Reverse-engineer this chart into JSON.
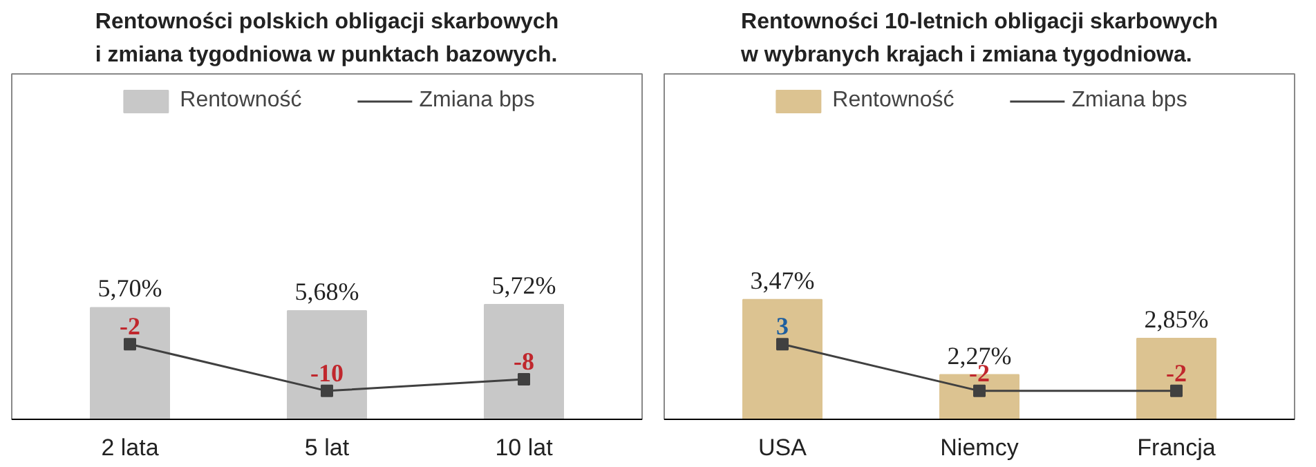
{
  "chart_data": [
    {
      "type": "bar",
      "title": "Rentowności polskich obligacji skarbowych\ni zmiana tygodniowa w punktach bazowych.",
      "categories": [
        "2 lata",
        "5 lat",
        "10 lat"
      ],
      "ylim": [
        4.97,
        7.23
      ],
      "y2lim": [
        -14.87,
        44.3
      ],
      "tick_labels": "x",
      "data_labels": true,
      "legend": "top",
      "grid": false,
      "series": [
        {
          "name": "Rentowność",
          "color": "#c8c8c8",
          "values": [
            5.7,
            5.68,
            5.72
          ],
          "value_labels": [
            "5,70%",
            "5,68%",
            "5,72%"
          ]
        },
        {
          "name": "Zmiana bps",
          "type": "line",
          "axis": "y2",
          "color": "#404040",
          "marker": "square",
          "values": [
            -2,
            -10,
            -8
          ]
        }
      ]
    },
    {
      "type": "bar",
      "title": "Rentowności 10-letnich obligacji skarbowych\nw wybranych krajach i zmiana tygodniowa.",
      "categories": [
        "USA",
        "Niemcy",
        "Francja"
      ],
      "ylim": [
        1.56,
        7.07
      ],
      "y2lim": [
        -5.04,
        31.9
      ],
      "tick_labels": "x",
      "data_labels": true,
      "legend": "top",
      "grid": false,
      "series": [
        {
          "name": "Rentowność",
          "color": "#dcc391",
          "values": [
            3.47,
            2.27,
            2.85
          ],
          "value_labels": [
            "3,47%",
            "2,27%",
            "2,85%"
          ]
        },
        {
          "name": "Zmiana bps",
          "type": "line",
          "axis": "y2",
          "color": "#404040",
          "marker": "square",
          "values": [
            3,
            -2,
            -2
          ]
        }
      ]
    }
  ]
}
